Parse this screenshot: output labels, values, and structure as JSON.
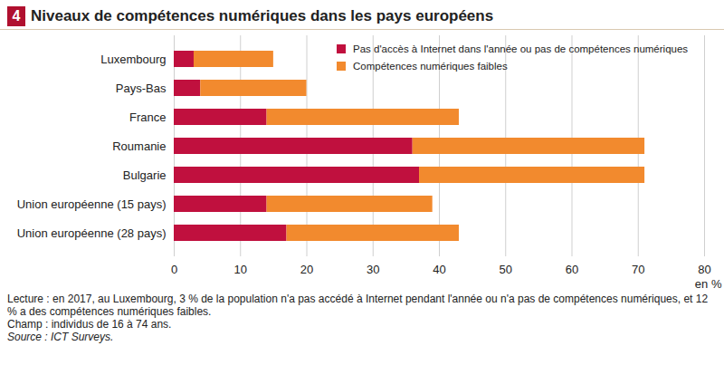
{
  "chart_data": {
    "type": "bar",
    "title_number": "4",
    "title": "Niveaux de compétences numériques dans les pays européens",
    "orientation": "horizontal",
    "stacked": true,
    "categories": [
      "Luxembourg",
      "Pays-Bas",
      "France",
      "Roumanie",
      "Bulgarie",
      "Union européenne (15 pays)",
      "Union européenne (28 pays)"
    ],
    "series": [
      {
        "name": "Pas d'accès à Internet dans l'année ou pas de compétences numériques",
        "color": "#c0103e",
        "values": [
          3,
          4,
          14,
          36,
          37,
          14,
          17
        ]
      },
      {
        "name": "Compétences numériques faibles",
        "color": "#f28a2e",
        "values": [
          12,
          16,
          29,
          35,
          34,
          25,
          26
        ]
      }
    ],
    "x_label": "en %",
    "xlim": [
      0,
      80
    ],
    "xticks": [
      0,
      10,
      20,
      30,
      40,
      50,
      60,
      70,
      80
    ],
    "grid": true,
    "legend": "top-right",
    "caption": [
      "Lecture : en 2017, au Luxembourg, 3 % de la population n'a pas accédé à Internet pendant l'année ou n'a pas de compétences numériques, et 12 % a des compétences numériques faibles.",
      "Champ : individus de 16 à 74 ans.",
      "Source : ICT Surveys."
    ]
  }
}
